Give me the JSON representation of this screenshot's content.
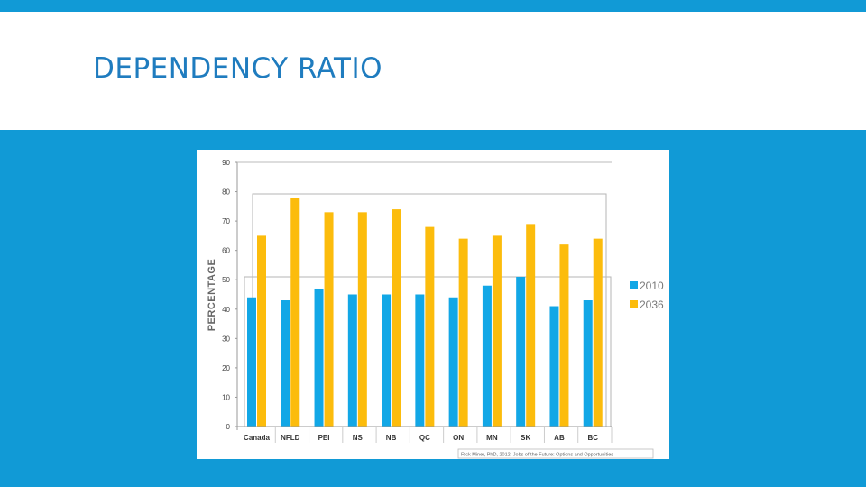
{
  "slide": {
    "title": "DEPENDENCY RATIO"
  },
  "colors": {
    "accent": "#119ad6",
    "title": "#1f7cbf",
    "series_2010": "#12a7e6",
    "series_2036": "#fcbc0c"
  },
  "chart_data": {
    "type": "bar",
    "title": "",
    "xlabel": "",
    "ylabel": "PERCENTAGE",
    "ylim": [
      0,
      90
    ],
    "yticks": [
      "0",
      "10",
      "20",
      "30",
      "40",
      "50",
      "60",
      "70",
      "80",
      "90"
    ],
    "categories": [
      "Canada",
      "NFLD",
      "PEI",
      "NS",
      "NB",
      "QC",
      "ON",
      "MN",
      "SK",
      "AB",
      "BC"
    ],
    "series": [
      {
        "name": "2010",
        "values": [
          44,
          43,
          47,
          45,
          45,
          45,
          44,
          48,
          51,
          41,
          43
        ]
      },
      {
        "name": "2036",
        "values": [
          65,
          78,
          73,
          73,
          74,
          68,
          64,
          65,
          69,
          62,
          64
        ]
      }
    ],
    "legend": "right",
    "grid": false,
    "source_note": "Rick Miner, PhD, 2012, Jobs of the Future: Options and Opportunities"
  }
}
